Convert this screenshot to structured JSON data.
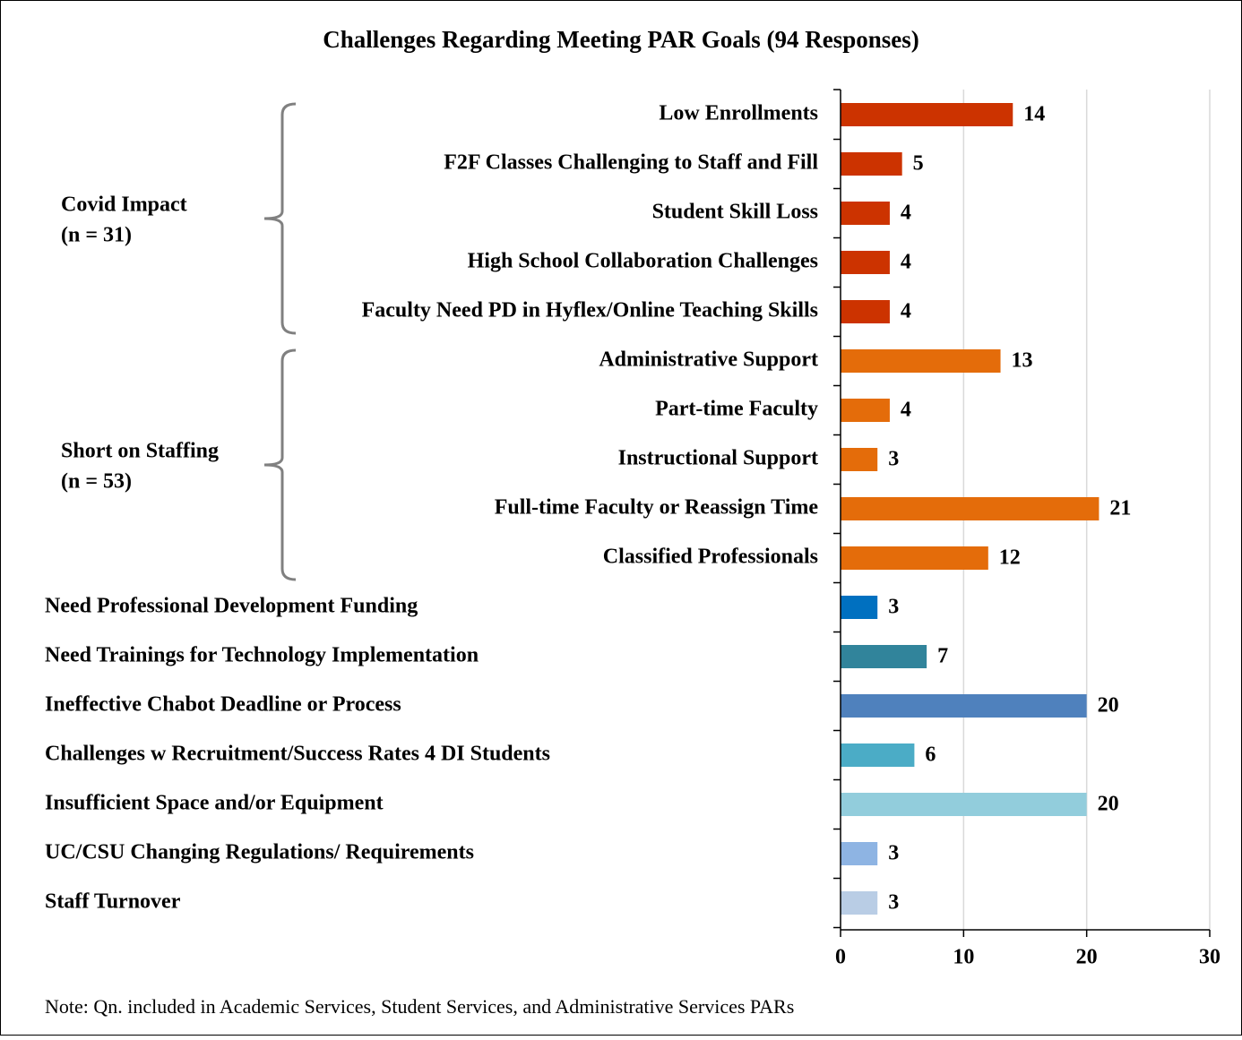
{
  "chart_data": {
    "type": "bar",
    "orientation": "horizontal",
    "title": "Challenges Regarding Meeting PAR Goals (94 Responses)",
    "note": "Note: Qn. included in Academic Services, Student Services, and Administrative Services PARs",
    "xlim": [
      0,
      30
    ],
    "xticks": [
      0,
      10,
      20,
      30
    ],
    "grid": true,
    "groups": [
      {
        "title": "Covid Impact",
        "subtitle": "(n = 31)",
        "categories": [
          "Low Enrollments",
          "F2F Classes Challenging to Staff and Fill",
          "Student Skill Loss",
          "High School Collaboration Challenges",
          "Faculty Need PD in Hyflex/Online Teaching Skills"
        ],
        "values": [
          14,
          5,
          4,
          4,
          4
        ],
        "colors": [
          "#cc3300",
          "#cc3300",
          "#cc3300",
          "#cc3300",
          "#cc3300"
        ]
      },
      {
        "title": "Short on Staffing",
        "subtitle": "(n = 53)",
        "categories": [
          "Administrative Support",
          "Part-time Faculty",
          "Instructional Support",
          "Full-time Faculty or Reassign Time",
          "Classified Professionals"
        ],
        "values": [
          13,
          4,
          3,
          21,
          12
        ],
        "colors": [
          "#e46c0a",
          "#e46c0a",
          "#e46c0a",
          "#e46c0a",
          "#e46c0a"
        ]
      },
      {
        "categories": [
          "Need Professional Development Funding",
          "Need Trainings for Technology Implementation",
          "Ineffective Chabot Deadline or Process",
          "Challenges w Recruitment/Success Rates 4 DI Students",
          "Insufficient Space and/or Equipment",
          "UC/CSU Changing Regulations/ Requirements",
          "Staff Turnover"
        ],
        "values": [
          3,
          7,
          20,
          6,
          20,
          3,
          3
        ],
        "colors": [
          "#0070c0",
          "#31849b",
          "#4f81bd",
          "#4bacc6",
          "#92cddc",
          "#8eb4e3",
          "#b9cde5"
        ]
      }
    ]
  }
}
